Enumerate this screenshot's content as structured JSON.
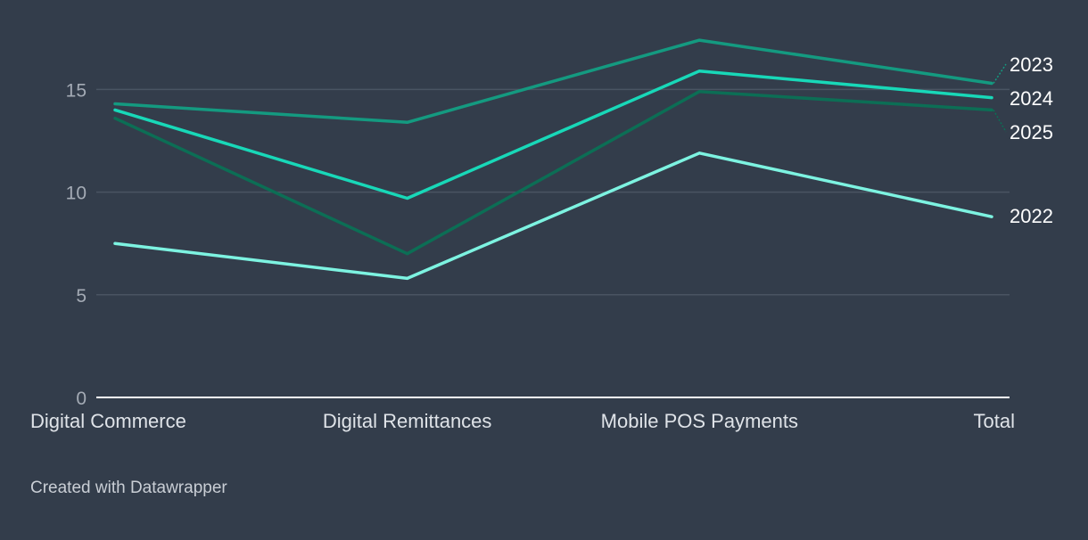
{
  "chart_data": {
    "type": "line",
    "title": "",
    "xlabel": "",
    "ylabel": "",
    "categories": [
      "Digital Commerce",
      "Digital Remittances",
      "Mobile POS Payments",
      "Total"
    ],
    "ylim": [
      0,
      18
    ],
    "yticks": [
      0,
      5,
      10,
      15
    ],
    "grid": true,
    "legend": "direct labels at line ends, right",
    "series": [
      {
        "name": "2022",
        "color": "#7df3e1",
        "values": [
          7.5,
          5.8,
          11.9,
          8.8
        ]
      },
      {
        "name": "2023",
        "color": "#149a80",
        "values": [
          14.3,
          13.4,
          17.4,
          15.3
        ]
      },
      {
        "name": "2024",
        "color": "#18d8b8",
        "values": [
          14.0,
          9.7,
          15.9,
          14.6
        ]
      },
      {
        "name": "2025",
        "color": "#0c6e55",
        "values": [
          13.6,
          7.0,
          14.9,
          14.0
        ]
      }
    ]
  },
  "footer": {
    "credit": "Created with Datawrapper"
  }
}
